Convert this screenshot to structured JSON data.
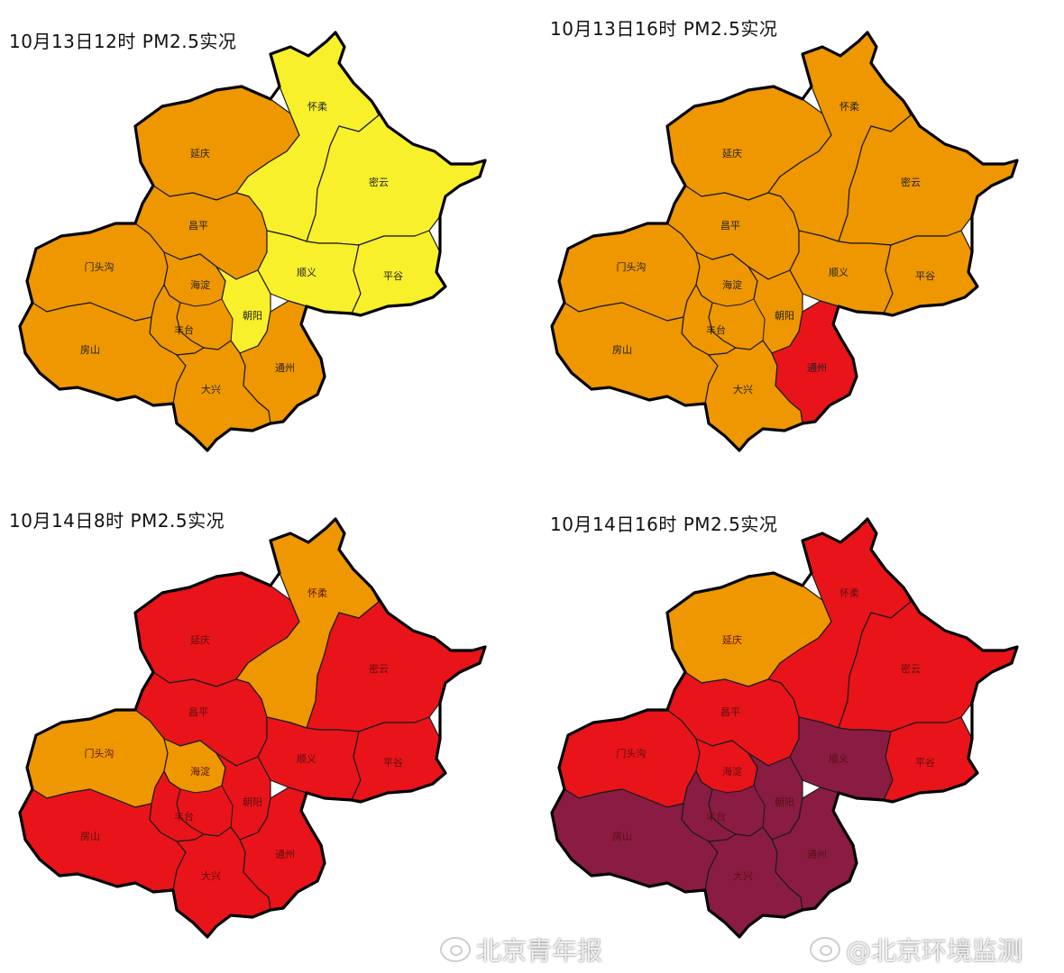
{
  "panels": [
    {
      "title": "10月13日12时 PM2.5实况",
      "colors": {
        "huairou": "#f8f02a",
        "miyun": "#f8f02a",
        "yanqing": "#ef9700",
        "changping": "#ef9700",
        "shunyi": "#f8f02a",
        "pinggu": "#f8f02a",
        "mentougou": "#ef9700",
        "haidian": "#ef9700",
        "chaoyang": "#f8f02a",
        "fangshan": "#ef9700",
        "fengtai": "#ef9700",
        "core": "#ef9700",
        "daxing": "#ef9700",
        "tongzhou": "#ef9700"
      },
      "labels": {
        "huairou": "怀柔",
        "miyun": "密云",
        "yanqing": "延庆",
        "changping": "昌平",
        "shunyi": "顺义",
        "pinggu": "平谷",
        "mentougou": "门头沟",
        "haidian": "海淀",
        "chaoyang": "朝阳",
        "fangshan": "房山",
        "fengtai": "丰台",
        "daxing": "大兴",
        "tongzhou": "通州"
      },
      "label_color": "#222222"
    },
    {
      "title": "10月13日16时 PM2.5实况",
      "colors": {
        "huairou": "#ef9700",
        "miyun": "#ef9700",
        "yanqing": "#ef9700",
        "changping": "#ef9700",
        "shunyi": "#ef9700",
        "pinggu": "#ef9700",
        "mentougou": "#ef9700",
        "haidian": "#ef9700",
        "chaoyang": "#ef9700",
        "fangshan": "#ef9700",
        "fengtai": "#ef9700",
        "core": "#ef9700",
        "daxing": "#ef9700",
        "tongzhou": "#e8141a"
      },
      "labels": {
        "huairou": "怀柔",
        "miyun": "密云",
        "yanqing": "延庆",
        "changping": "昌平",
        "shunyi": "顺义",
        "pinggu": "平谷",
        "mentougou": "门头沟",
        "haidian": "海淀",
        "chaoyang": "朝阳",
        "fangshan": "房山",
        "fengtai": "丰台",
        "daxing": "大兴",
        "tongzhou": "通州"
      },
      "label_color": "#222222"
    },
    {
      "title": "10月14日8时 PM2.5实况",
      "colors": {
        "huairou": "#ef9700",
        "miyun": "#e8141a",
        "yanqing": "#e8141a",
        "changping": "#e8141a",
        "shunyi": "#e8141a",
        "pinggu": "#e8141a",
        "mentougou": "#ef9700",
        "haidian": "#ef9700",
        "chaoyang": "#e8141a",
        "fangshan": "#e8141a",
        "fengtai": "#e8141a",
        "core": "#e8141a",
        "daxing": "#e8141a",
        "tongzhou": "#e8141a"
      },
      "labels": {
        "huairou": "怀柔",
        "miyun": "密云",
        "yanqing": "延庆",
        "changping": "昌平",
        "shunyi": "顺义",
        "pinggu": "平谷",
        "mentougou": "门头沟",
        "haidian": "海淀",
        "chaoyang": "朝阳",
        "fangshan": "房山",
        "fengtai": "丰台",
        "daxing": "大兴",
        "tongzhou": "通州"
      },
      "label_color": "#5a1010"
    },
    {
      "title": "10月14日16时 PM2.5实况",
      "colors": {
        "huairou": "#e8141a",
        "miyun": "#e8141a",
        "yanqing": "#ef9700",
        "changping": "#e8141a",
        "shunyi": "#8a1c44",
        "pinggu": "#e8141a",
        "mentougou": "#e8141a",
        "haidian": "#e8141a",
        "chaoyang": "#8a1c44",
        "fangshan": "#8a1c44",
        "fengtai": "#8a1c44",
        "core": "#8a1c44",
        "daxing": "#8a1c44",
        "tongzhou": "#8a1c44"
      },
      "labels": {
        "huairou": "怀柔",
        "miyun": "密云",
        "yanqing": "延庆",
        "changping": "昌平",
        "shunyi": "顺义",
        "pinggu": "平谷",
        "mentougou": "门头沟",
        "haidian": "海淀",
        "chaoyang": "朝阳",
        "fangshan": "房山",
        "fengtai": "丰台",
        "daxing": "大兴",
        "tongzhou": "通州"
      },
      "label_color": "#5a1010"
    }
  ],
  "watermarks": [
    {
      "icon": "weibo-icon",
      "text": "北京青年报"
    },
    {
      "icon": "weibo-icon",
      "text": "@北京环境监测"
    }
  ]
}
